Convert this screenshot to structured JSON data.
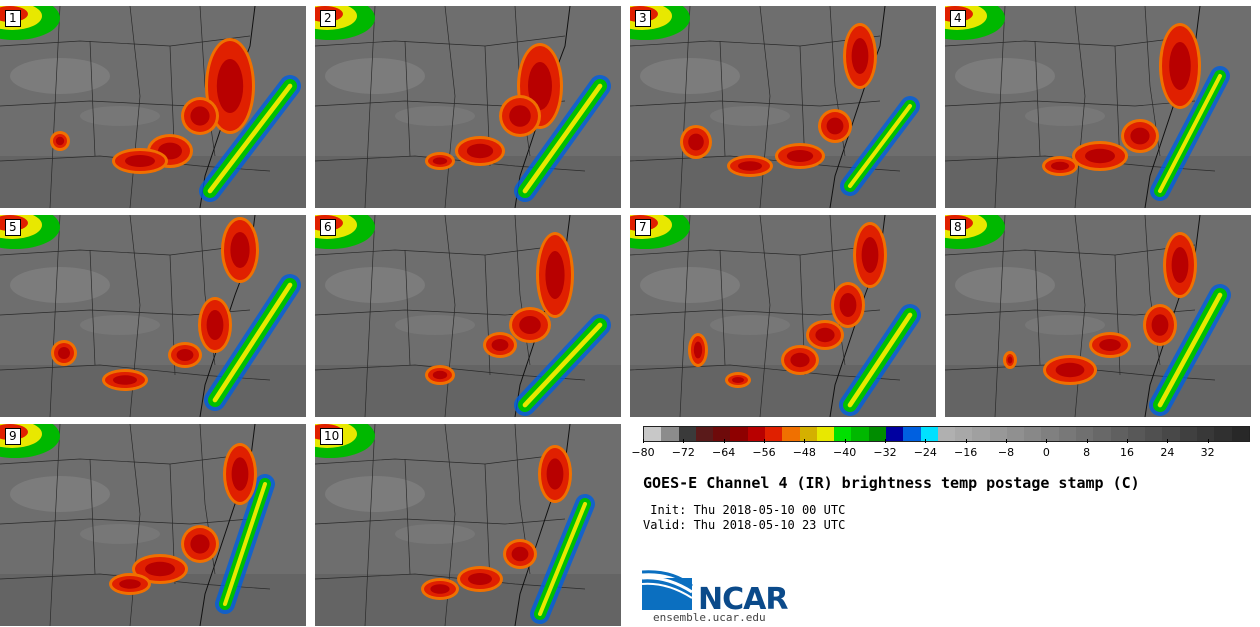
{
  "panels": [
    {
      "number": "1"
    },
    {
      "number": "2"
    },
    {
      "number": "3"
    },
    {
      "number": "4"
    },
    {
      "number": "5"
    },
    {
      "number": "6"
    },
    {
      "number": "7"
    },
    {
      "number": "8"
    },
    {
      "number": "9"
    },
    {
      "number": "10"
    }
  ],
  "colorbar": {
    "colors": [
      "#c8c8c8",
      "#8c8c8c",
      "#3a3a3a",
      "#5a1a1a",
      "#6e0a0a",
      "#8e0000",
      "#b80000",
      "#e02000",
      "#f07000",
      "#d4b000",
      "#e8e800",
      "#00e000",
      "#00b800",
      "#008c00",
      "#0000a0",
      "#0060e0",
      "#00e0ff",
      "#b0b0b0",
      "#a8a8a8",
      "#a0a0a0",
      "#989898",
      "#909090",
      "#888888",
      "#808080",
      "#787878",
      "#707070",
      "#686868",
      "#606060",
      "#585858",
      "#505050",
      "#484848",
      "#404040",
      "#383838",
      "#303030",
      "#282828"
    ],
    "ticks": [
      "−80",
      "−72",
      "−64",
      "−56",
      "−48",
      "−40",
      "−32",
      "−24",
      "−16",
      "−8",
      "0",
      "8",
      "16",
      "24",
      "32"
    ],
    "tick_values": [
      -80,
      -72,
      -64,
      -56,
      -48,
      -40,
      -32,
      -24,
      -16,
      -8,
      0,
      8,
      16,
      24,
      32
    ],
    "min": -80,
    "max": 40
  },
  "title": "GOES-E Channel 4 (IR) brightness temp postage stamp (C)",
  "init": " Init: Thu 2018-05-10 00 UTC",
  "valid": "Valid: Thu 2018-05-10 23 UTC",
  "logo_text": "NCAR",
  "site": "ensemble.ucar.edu"
}
